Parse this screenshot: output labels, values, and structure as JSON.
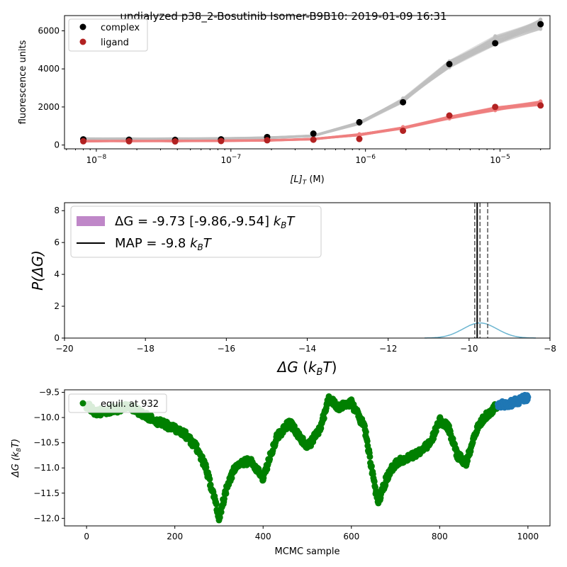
{
  "figure_title": "undialyzed p38_2-Bosutinib Isomer-B9B10: 2019-01-09 16:31",
  "chart_data": [
    {
      "type": "scatter",
      "xlabel": "[L]",
      "xlabel_sub": "T",
      "xlabel_unit": " (M)",
      "ylabel": "fluorescence units",
      "xscale": "log",
      "xlim": [
        5.8e-09,
        2.35e-05
      ],
      "ylim": [
        -200,
        6800
      ],
      "x_ticks": [
        {
          "v": 1e-08,
          "base": "10",
          "exp": "−8"
        },
        {
          "v": 1e-07,
          "base": "10",
          "exp": "−7"
        },
        {
          "v": 1e-06,
          "base": "10",
          "exp": "−6"
        },
        {
          "v": 1e-05,
          "base": "10",
          "exp": "−5"
        }
      ],
      "y_ticks": [
        0,
        2000,
        4000,
        6000
      ],
      "x": [
        8e-09,
        1.75e-08,
        3.85e-08,
        8.45e-08,
        1.86e-07,
        4.1e-07,
        9e-07,
        1.9e-06,
        4.2e-06,
        9.2e-06,
        2e-05
      ],
      "series": [
        {
          "name": "complex",
          "color": "#000000",
          "values": [
            300,
            280,
            270,
            300,
            420,
            600,
            1200,
            2250,
            4250,
            5350,
            6350
          ]
        },
        {
          "name": "ligand",
          "color": "#b22222",
          "values": [
            200,
            200,
            190,
            210,
            250,
            280,
            320,
            750,
            1550,
            2000,
            2080
          ]
        }
      ],
      "model_bands": [
        {
          "color": "#c0c0c0",
          "values": [
            330,
            330,
            335,
            345,
            380,
            480,
            1150,
            2350,
            4250,
            5500,
            6350
          ]
        },
        {
          "color": "#f08080",
          "values": [
            205,
            208,
            212,
            220,
            240,
            310,
            540,
            900,
            1450,
            1900,
            2200
          ]
        }
      ],
      "legend_placement": "upper-left"
    },
    {
      "type": "area",
      "xlabel": "ΔG",
      "xlabel_unit_main": "k",
      "xlabel_unit_sub": "B",
      "xlabel_unit_tail": "T",
      "ylabel": "P(ΔG)",
      "xlim": [
        -20,
        -8
      ],
      "ylim": [
        0,
        8.5
      ],
      "x_ticks": [
        -20,
        -18,
        -16,
        -14,
        -12,
        -10,
        -8
      ],
      "x_tick_labels": [
        "−20",
        "−18",
        "−16",
        "−14",
        "−12",
        "−10",
        "−8"
      ],
      "y_ticks": [
        0,
        2,
        4,
        6,
        8
      ],
      "distribution": {
        "mean": -9.73,
        "sd": 0.42,
        "peak": 0.95,
        "x_from": -11.1,
        "x_to": -8.35,
        "color": "#6cb5d0"
      },
      "interval_color": "#bf87c8",
      "map_value": -9.8,
      "ci_lines": [
        -9.86,
        -9.54
      ],
      "median_line": -9.73,
      "legend": [
        {
          "label": "ΔG =  -9.73 [-9.86,-9.54] ",
          "unit_main": "k",
          "unit_sub": "B",
          "unit_tail": "T",
          "kind": "patch"
        },
        {
          "label": "MAP = -9.8 ",
          "unit_main": "k",
          "unit_sub": "B",
          "unit_tail": "T",
          "kind": "line"
        }
      ],
      "legend_placement": "upper-left"
    },
    {
      "type": "scatter",
      "xlabel": "MCMC sample",
      "ylabel": "ΔG (k",
      "ylabel_sub": "B",
      "ylabel_tail": "T)",
      "xlim": [
        -50,
        1050
      ],
      "ylim": [
        -12.15,
        -9.45
      ],
      "x_ticks": [
        0,
        200,
        400,
        600,
        800,
        1000
      ],
      "y_ticks": [
        -12.0,
        -11.5,
        -11.0,
        -10.5,
        -10.0,
        -9.5
      ],
      "y_tick_labels": [
        "−12.0",
        "−11.5",
        "−11.0",
        "−10.5",
        "−10.0",
        "−9.5"
      ],
      "equil_index": 932,
      "trace_keypoints": [
        [
          0,
          -9.75
        ],
        [
          20,
          -9.9
        ],
        [
          60,
          -9.85
        ],
        [
          100,
          -9.78
        ],
        [
          140,
          -10.0
        ],
        [
          180,
          -10.15
        ],
        [
          220,
          -10.3
        ],
        [
          250,
          -10.6
        ],
        [
          270,
          -11.0
        ],
        [
          290,
          -11.6
        ],
        [
          300,
          -12.0
        ],
        [
          320,
          -11.3
        ],
        [
          340,
          -10.95
        ],
        [
          370,
          -10.85
        ],
        [
          400,
          -11.2
        ],
        [
          430,
          -10.4
        ],
        [
          460,
          -10.1
        ],
        [
          500,
          -10.6
        ],
        [
          530,
          -10.2
        ],
        [
          550,
          -9.6
        ],
        [
          570,
          -9.8
        ],
        [
          600,
          -9.7
        ],
        [
          630,
          -10.2
        ],
        [
          660,
          -11.7
        ],
        [
          680,
          -11.2
        ],
        [
          700,
          -10.9
        ],
        [
          740,
          -10.75
        ],
        [
          780,
          -10.5
        ],
        [
          800,
          -10.05
        ],
        [
          820,
          -10.2
        ],
        [
          840,
          -10.75
        ],
        [
          860,
          -10.9
        ],
        [
          880,
          -10.3
        ],
        [
          900,
          -10.0
        ],
        [
          932,
          -9.75
        ],
        [
          960,
          -9.72
        ],
        [
          1000,
          -9.6
        ]
      ],
      "series": [
        {
          "name": "equil. at 932",
          "color": "#008000"
        },
        {
          "name": "",
          "color": "#1f77b4"
        }
      ],
      "legend_placement": "upper-left"
    }
  ]
}
